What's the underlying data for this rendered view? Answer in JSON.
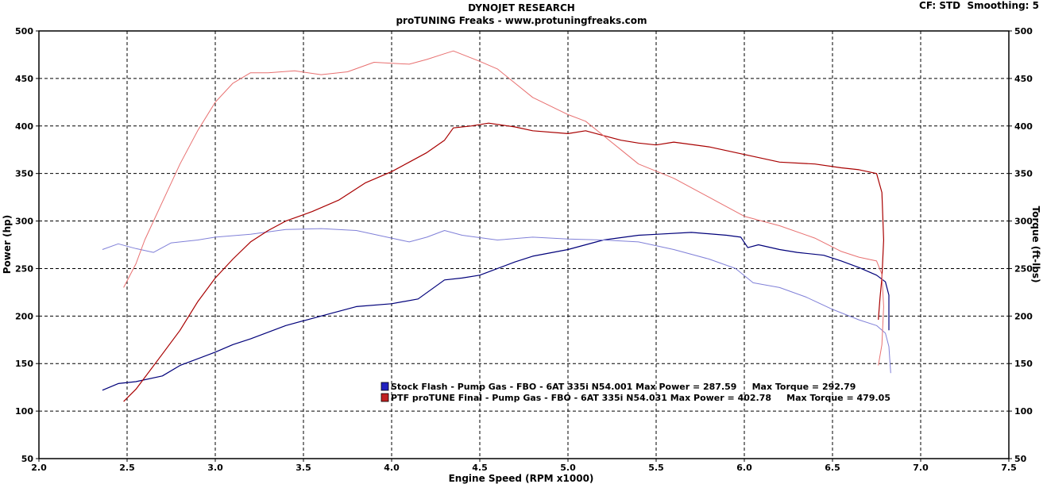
{
  "header": {
    "title": "DYNOJET RESEARCH",
    "subtitle": "proTUNING Freaks - www.protuningfreaks.com",
    "correction": "CF: STD",
    "smoothing": "Smoothing: 5"
  },
  "chart_data": {
    "type": "line",
    "xlabel": "Engine Speed (RPM x1000)",
    "ylabel_left": "Power (hp)",
    "ylabel_right": "Torque (ft-lbs)",
    "xlim": [
      2.0,
      7.5
    ],
    "ylim": [
      50,
      500
    ],
    "x_ticks": [
      "2.0",
      "2.5",
      "3.0",
      "3.5",
      "4.0",
      "4.5",
      "5.0",
      "5.5",
      "6.0",
      "6.5",
      "7.0",
      "7.5"
    ],
    "y_ticks": [
      "50",
      "100",
      "150",
      "200",
      "250",
      "300",
      "350",
      "400",
      "450",
      "500"
    ],
    "grid": true,
    "legend": [
      {
        "swatch": "#2020c0",
        "text": "Stock Flash - Pump Gas - FBO - 6AT 335i N54.001 Max Power = 287.59     Max Torque = 292.79"
      },
      {
        "swatch": "#c02020",
        "text": "PTF proTUNE Final - Pump Gas - FBO - 6AT 335i N54.031 Max Power = 402.78     Max Torque = 479.05"
      }
    ],
    "series": [
      {
        "run": "stock",
        "measure": "power",
        "color": "#00007a",
        "width": 1.2,
        "points": [
          [
            2.36,
            122
          ],
          [
            2.45,
            129
          ],
          [
            2.55,
            131
          ],
          [
            2.7,
            137
          ],
          [
            2.8,
            148
          ],
          [
            3.0,
            162
          ],
          [
            3.1,
            170
          ],
          [
            3.2,
            176
          ],
          [
            3.4,
            190
          ],
          [
            3.6,
            200
          ],
          [
            3.8,
            210
          ],
          [
            4.0,
            213
          ],
          [
            4.15,
            218
          ],
          [
            4.3,
            238
          ],
          [
            4.4,
            240
          ],
          [
            4.5,
            243
          ],
          [
            4.7,
            257
          ],
          [
            4.8,
            263
          ],
          [
            5.0,
            270
          ],
          [
            5.2,
            280
          ],
          [
            5.4,
            285
          ],
          [
            5.5,
            286
          ],
          [
            5.7,
            288
          ],
          [
            5.9,
            285
          ],
          [
            5.98,
            283
          ],
          [
            6.02,
            272
          ],
          [
            6.08,
            275
          ],
          [
            6.2,
            270
          ],
          [
            6.3,
            267
          ],
          [
            6.45,
            264
          ],
          [
            6.55,
            258
          ],
          [
            6.65,
            251
          ],
          [
            6.75,
            243
          ],
          [
            6.8,
            236
          ],
          [
            6.82,
            222
          ],
          [
            6.82,
            185
          ]
        ]
      },
      {
        "run": "stock",
        "measure": "torque",
        "color": "#8080d8",
        "width": 1.0,
        "points": [
          [
            2.36,
            270
          ],
          [
            2.45,
            276
          ],
          [
            2.55,
            271
          ],
          [
            2.65,
            267
          ],
          [
            2.75,
            277
          ],
          [
            2.9,
            280
          ],
          [
            3.0,
            283
          ],
          [
            3.2,
            286
          ],
          [
            3.4,
            291
          ],
          [
            3.6,
            292
          ],
          [
            3.8,
            290
          ],
          [
            4.0,
            282
          ],
          [
            4.1,
            278
          ],
          [
            4.2,
            283
          ],
          [
            4.3,
            290
          ],
          [
            4.4,
            285
          ],
          [
            4.6,
            280
          ],
          [
            4.8,
            283
          ],
          [
            5.0,
            281
          ],
          [
            5.2,
            280
          ],
          [
            5.4,
            278
          ],
          [
            5.6,
            270
          ],
          [
            5.8,
            260
          ],
          [
            5.95,
            250
          ],
          [
            6.05,
            235
          ],
          [
            6.2,
            230
          ],
          [
            6.35,
            220
          ],
          [
            6.5,
            207
          ],
          [
            6.65,
            196
          ],
          [
            6.75,
            190
          ],
          [
            6.8,
            182
          ],
          [
            6.82,
            168
          ],
          [
            6.83,
            140
          ]
        ]
      },
      {
        "run": "tuned",
        "measure": "power",
        "color": "#a80000",
        "width": 1.2,
        "points": [
          [
            2.48,
            110
          ],
          [
            2.55,
            123
          ],
          [
            2.7,
            160
          ],
          [
            2.8,
            185
          ],
          [
            2.9,
            215
          ],
          [
            3.0,
            240
          ],
          [
            3.1,
            260
          ],
          [
            3.2,
            278
          ],
          [
            3.3,
            290
          ],
          [
            3.4,
            300
          ],
          [
            3.55,
            310
          ],
          [
            3.7,
            322
          ],
          [
            3.85,
            340
          ],
          [
            4.0,
            352
          ],
          [
            4.1,
            362
          ],
          [
            4.2,
            372
          ],
          [
            4.3,
            385
          ],
          [
            4.35,
            398
          ],
          [
            4.45,
            400
          ],
          [
            4.55,
            403
          ],
          [
            4.7,
            399
          ],
          [
            4.8,
            395
          ],
          [
            5.0,
            392
          ],
          [
            5.1,
            395
          ],
          [
            5.2,
            390
          ],
          [
            5.3,
            385
          ],
          [
            5.4,
            382
          ],
          [
            5.5,
            380
          ],
          [
            5.6,
            383
          ],
          [
            5.8,
            378
          ],
          [
            6.0,
            370
          ],
          [
            6.2,
            362
          ],
          [
            6.4,
            360
          ],
          [
            6.55,
            356
          ],
          [
            6.65,
            354
          ],
          [
            6.75,
            350
          ],
          [
            6.78,
            330
          ],
          [
            6.79,
            280
          ],
          [
            6.78,
            240
          ],
          [
            6.77,
            220
          ],
          [
            6.76,
            196
          ]
        ]
      },
      {
        "run": "tuned",
        "measure": "torque",
        "color": "#e87070",
        "width": 1.0,
        "points": [
          [
            2.48,
            230
          ],
          [
            2.55,
            255
          ],
          [
            2.6,
            280
          ],
          [
            2.7,
            320
          ],
          [
            2.8,
            360
          ],
          [
            2.9,
            395
          ],
          [
            3.0,
            425
          ],
          [
            3.1,
            445
          ],
          [
            3.2,
            456
          ],
          [
            3.3,
            456
          ],
          [
            3.45,
            458
          ],
          [
            3.6,
            454
          ],
          [
            3.75,
            457
          ],
          [
            3.9,
            467
          ],
          [
            4.1,
            465
          ],
          [
            4.2,
            470
          ],
          [
            4.3,
            476
          ],
          [
            4.35,
            479
          ],
          [
            4.5,
            468
          ],
          [
            4.6,
            460
          ],
          [
            4.7,
            445
          ],
          [
            4.8,
            430
          ],
          [
            5.0,
            412
          ],
          [
            5.1,
            405
          ],
          [
            5.3,
            375
          ],
          [
            5.4,
            360
          ],
          [
            5.6,
            345
          ],
          [
            5.8,
            325
          ],
          [
            6.0,
            305
          ],
          [
            6.2,
            295
          ],
          [
            6.4,
            282
          ],
          [
            6.55,
            268
          ],
          [
            6.65,
            262
          ],
          [
            6.75,
            258
          ],
          [
            6.78,
            244
          ],
          [
            6.79,
            210
          ],
          [
            6.78,
            170
          ],
          [
            6.76,
            148
          ]
        ]
      }
    ]
  }
}
